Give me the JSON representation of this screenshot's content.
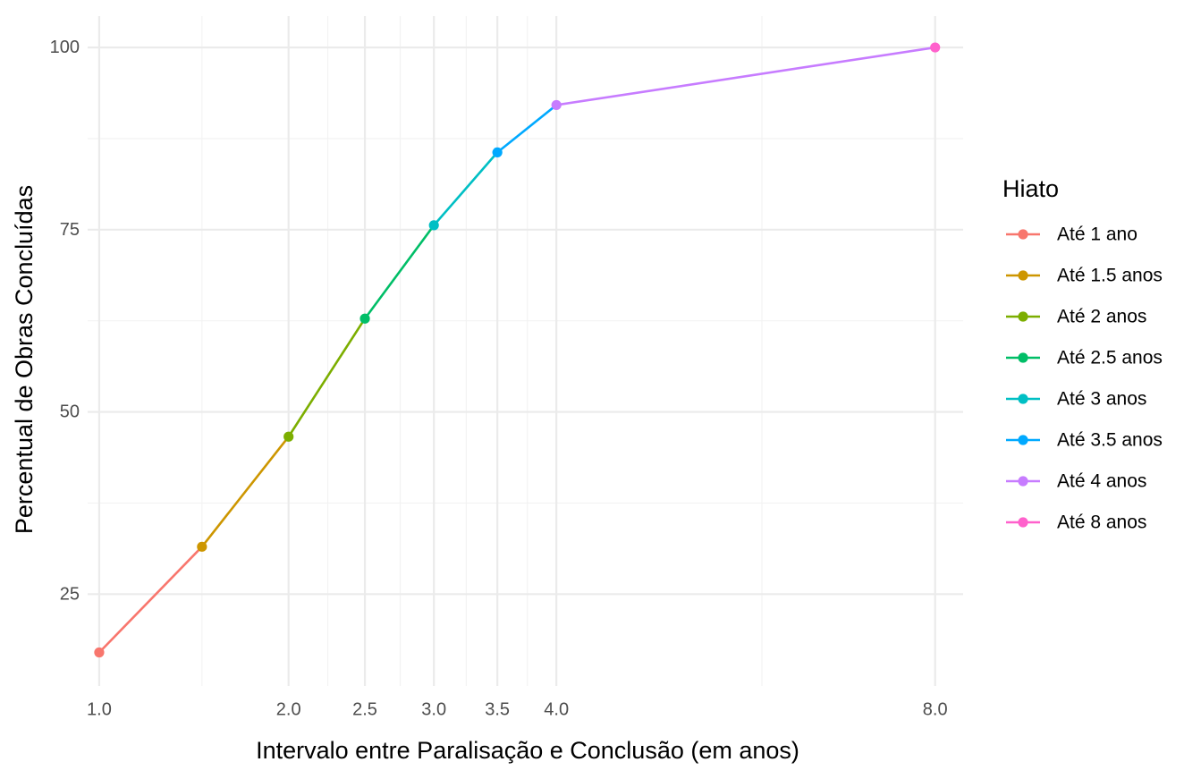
{
  "chart_data": {
    "type": "line",
    "title": "",
    "xlabel": "Intervalo entre Paralisação e Conclusão (em anos)",
    "ylabel": "Percentual de Obras Concluídas",
    "x_scale": "sqrt",
    "xlim": [
      0.95,
      8.35
    ],
    "ylim": [
      12.4,
      104.3
    ],
    "x_ticks": [
      1.0,
      2.0,
      2.5,
      3.0,
      3.5,
      4.0,
      8.0
    ],
    "x_tick_labels": [
      "1.0",
      "2.0",
      "2.5",
      "3.0",
      "3.5",
      "4.0",
      "8.0"
    ],
    "x_minor_grid": [
      1.5,
      2.25,
      2.75,
      3.25,
      3.75,
      6.0
    ],
    "y_ticks": [
      25,
      50,
      75,
      100
    ],
    "y_tick_labels": [
      "25",
      "50",
      "75",
      "100"
    ],
    "y_minor_grid": [
      37.5,
      62.5,
      87.5
    ],
    "grid": true,
    "legend_title": "Hiato",
    "legend_position": "right",
    "x": [
      1,
      1.5,
      2,
      2.5,
      3,
      3.5,
      4,
      8
    ],
    "y": [
      17,
      31.5,
      46.6,
      62.8,
      75.6,
      85.6,
      92.1,
      100
    ],
    "series": [
      {
        "name": "Até 1 ano",
        "color": "#F8766D"
      },
      {
        "name": "Até 1.5 anos",
        "color": "#CD9600"
      },
      {
        "name": "Até 2 anos",
        "color": "#7CAE00"
      },
      {
        "name": "Até 2.5 anos",
        "color": "#00BE67"
      },
      {
        "name": "Até 3 anos",
        "color": "#00BFC4"
      },
      {
        "name": "Até 3.5 anos",
        "color": "#00A9FF"
      },
      {
        "name": "Até 4 anos",
        "color": "#C77CFF"
      },
      {
        "name": "Até 8 anos",
        "color": "#FF61CC"
      }
    ]
  }
}
